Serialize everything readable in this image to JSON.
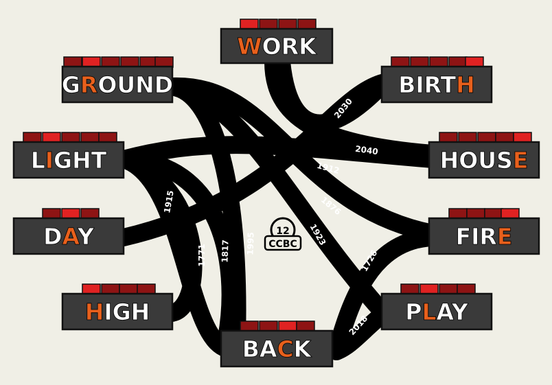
{
  "colors": {
    "background": "#f0efe6",
    "box": "#3a3a3a",
    "box_border": "#111111",
    "stud": "#8e1414",
    "stud_accent": "#e02222",
    "highlight_letter": "#e8601c",
    "letter": "#ffffff",
    "track": "#000000"
  },
  "nodes": [
    {
      "id": "work",
      "pre": "",
      "hl": "W",
      "post": "ORK"
    },
    {
      "id": "ground",
      "pre": "G",
      "hl": "R",
      "post": "OUND"
    },
    {
      "id": "birth",
      "pre": "BIRT",
      "hl": "H",
      "post": ""
    },
    {
      "id": "light",
      "pre": "L",
      "hl": "I",
      "post": "GHT"
    },
    {
      "id": "house",
      "pre": "HOUS",
      "hl": "E",
      "post": ""
    },
    {
      "id": "day",
      "pre": "D",
      "hl": "A",
      "post": "Y"
    },
    {
      "id": "fire",
      "pre": "FIR",
      "hl": "E",
      "post": ""
    },
    {
      "id": "high",
      "pre": "",
      "hl": "H",
      "post": "IGH"
    },
    {
      "id": "play",
      "pre": "P",
      "hl": "L",
      "post": "AY"
    },
    {
      "id": "back",
      "pre": "BA",
      "hl": "C",
      "post": "K"
    }
  ],
  "year_labels": [
    "2030",
    "2040",
    "1912",
    "1876",
    "1923",
    "1726",
    "2018",
    "1915",
    "1771",
    "1817",
    "1995"
  ],
  "logo": {
    "number": "12",
    "text": "CCBC"
  }
}
